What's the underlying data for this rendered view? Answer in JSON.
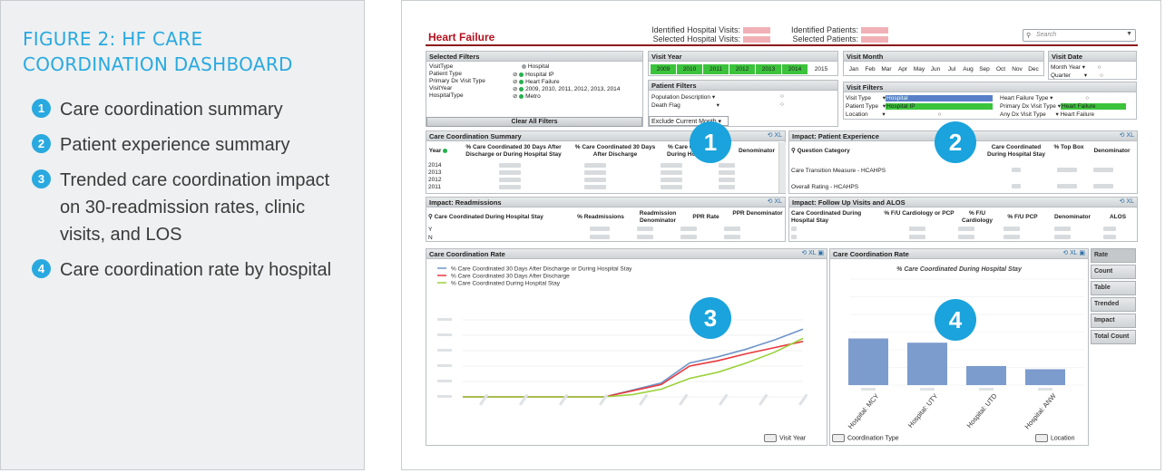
{
  "figure": {
    "title": "FIGURE 2: HF CARE COORDINATION DASHBOARD",
    "items": [
      {
        "num": "1",
        "text": "Care coordination summary"
      },
      {
        "num": "2",
        "text": "Patient experience summary"
      },
      {
        "num": "3",
        "text": "Trended care coordination impact on 30-readmission rates, clinic visits, and LOS"
      },
      {
        "num": "4",
        "text": "Care coordination rate by hospital"
      }
    ]
  },
  "header": {
    "title": "Heart Failure",
    "identified_visits_label": "Identified Hospital Visits:",
    "selected_visits_label": "Selected Hospital Visits:",
    "identified_patients_label": "Identified Patients:",
    "selected_patients_label": "Selected Patients:",
    "search_placeholder": "Search"
  },
  "selected_filters": {
    "title": "Selected Filters",
    "rows": [
      {
        "field": "VisitType",
        "value": "Hospital"
      },
      {
        "field": "Patient Type",
        "value": "Hospital IP"
      },
      {
        "field": "Primary Dx Visit Type",
        "value": "Heart Failure"
      },
      {
        "field": "VisitYear",
        "value": "2009, 2010, 2011, 2012, 2013, 2014"
      },
      {
        "field": "HospitalType",
        "value": "Metro"
      }
    ],
    "clear_label": "Clear All Filters"
  },
  "visit_year": {
    "title": "Visit Year",
    "years": [
      "2009",
      "2010",
      "2011",
      "2012",
      "2013",
      "2014",
      "2015"
    ]
  },
  "visit_month": {
    "title": "Visit Month",
    "months": [
      "Jan",
      "Feb",
      "Mar",
      "Apr",
      "May",
      "Jun",
      "Jul",
      "Aug",
      "Sep",
      "Oct",
      "Nov",
      "Dec"
    ]
  },
  "visit_date": {
    "title": "Visit Date",
    "rows": [
      "Month Year",
      "Quarter"
    ]
  },
  "patient_filters": {
    "title": "Patient Filters",
    "rows": [
      "Population Description",
      "Death Flag"
    ],
    "exclude_label": "Exclude Current Month"
  },
  "visit_filters": {
    "title": "Visit Filters",
    "left": [
      {
        "field": "Visit Type",
        "value": "Hospital"
      },
      {
        "field": "Patient Type",
        "value": "Hospital IP"
      },
      {
        "field": "Location",
        "value": ""
      }
    ],
    "right": [
      {
        "field": "Heart Failure Type",
        "value": ""
      },
      {
        "field": "Primary Dx Visit Type",
        "value": "Heart Failure"
      },
      {
        "field": "Any Dx Visit Type",
        "value": "Heart Failure"
      }
    ]
  },
  "ccs": {
    "title": "Care Coordination Summary",
    "col_year": "Year",
    "col1": "% Care Coordinated 30 Days After Discharge or During Hospital Stay",
    "col2": "% Care Coordinated 30 Days After Discharge",
    "col3": "% Care Coordinated During Hospital Stay",
    "col4": "Denominator",
    "years": [
      "2014",
      "2013",
      "2012",
      "2011"
    ]
  },
  "pe": {
    "title": "Impact: Patient Experience",
    "col_q": "Question Category",
    "col_cc": "Care Coordinated During Hospital Stay",
    "col_top": "% Top Box",
    "col_den": "Denominator",
    "rows": [
      "Care Transition Measure - HCAHPS",
      "Overall Rating - HCAHPS"
    ]
  },
  "readm": {
    "title": "Impact: Readmissions",
    "col_cc": "Care Coordinated During Hospital Stay",
    "col_pct": "% Readmissions",
    "col_rd": "Readmission Denominator",
    "col_ppr": "PPR Rate",
    "col_pprd": "PPR Denominator",
    "rows": [
      "Y",
      "N"
    ]
  },
  "fu": {
    "title": "Impact: Follow Up Visits and ALOS",
    "col_cc": "Care Coordinated During Hospital Stay",
    "col_card_pcp": "% F/U Cardiology or PCP",
    "col_card": "% F/U Cardiology",
    "col_pcp": "% F/U PCP",
    "col_den": "Denominator",
    "col_alos": "ALOS"
  },
  "line_chart": {
    "title": "Care Coordination Rate",
    "footer": "Visit Year"
  },
  "bar_chart": {
    "title": "Care Coordination Rate",
    "footer_left": "Coordination Type",
    "footer_right": "Location"
  },
  "side_tabs": [
    "Rate",
    "Count",
    "Table",
    "Trended",
    "Impact",
    "Total Count"
  ],
  "chart_data": [
    {
      "type": "line",
      "title": "",
      "series": [
        {
          "name": "% Care Coordinated 30 Days After Discharge or During Hospital Stay",
          "color": "#6f95c8",
          "values": [
            0,
            0,
            0,
            0,
            0,
            0,
            0.9,
            1.8,
            4.4,
            5.2,
            6.2,
            7.4,
            8.8
          ]
        },
        {
          "name": "% Care Coordinated 30 Days After Discharge",
          "color": "#e8383d",
          "values": [
            0,
            0,
            0,
            0,
            0,
            0,
            0.8,
            1.6,
            4.0,
            4.7,
            5.6,
            6.4,
            7.2
          ]
        },
        {
          "name": "% Care Coordinated During Hospital Stay",
          "color": "#9bd13a",
          "values": [
            0,
            0,
            0,
            0,
            0,
            0,
            0.3,
            1.0,
            2.4,
            3.2,
            4.4,
            5.8,
            7.6
          ]
        }
      ]
    },
    {
      "type": "bar",
      "title": "% Care Coordinated During Hospital Stay",
      "categories": [
        "Hospital: MCY",
        "Hospital: UTY",
        "Hospital: UTD",
        "Hospital: ANW"
      ],
      "values": [
        44,
        40,
        18,
        15
      ],
      "color": "#7c9ccd"
    }
  ]
}
